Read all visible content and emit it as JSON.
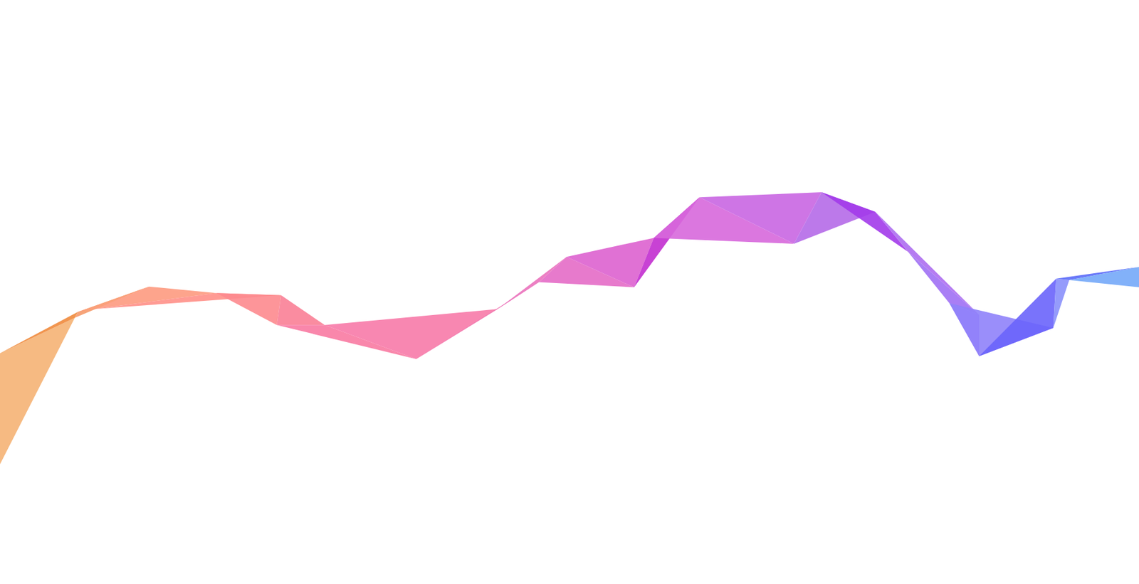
{
  "chart_data": {
    "type": "ribbon",
    "x": [
      0,
      0,
      103,
      107,
      205,
      130,
      298,
      387,
      381,
      447,
      573,
      685,
      742,
      780,
      873,
      900,
      963,
      1093,
      1131,
      1205,
      1250,
      1348,
      1307,
      1348,
      1450,
      1454,
      1472,
      1568,
      1568
    ],
    "values": [
      640,
      487,
      438,
      430,
      395,
      426,
      404,
      407,
      448,
      448,
      495,
      426,
      389,
      354,
      396,
      328,
      272,
      336,
      265,
      292,
      347,
      434,
      418,
      491,
      452,
      384,
      386,
      368,
      396
    ],
    "colors": [
      "#f5b374",
      "#f08a3c",
      "#f59a6a",
      "#fba07a",
      "#fd9a80",
      "#ff9088",
      "#fd8a8e",
      "#fa8096",
      "#f87aa2",
      "#f77aa8",
      "#f079b4",
      "#ea72bc",
      "#e46cc6",
      "#dd62cf",
      "#c22ecf",
      "#d768dc",
      "#c966e2",
      "#b56ae8",
      "#a23aea",
      "#ad6ef0",
      "#a070f4",
      "#a27af8",
      "#8f82fa",
      "#6a64fb",
      "#8a90fb",
      "#5a6af8",
      "#74a8f8"
    ],
    "xlim": [
      0,
      1568
    ],
    "ylim": [
      805,
      0
    ],
    "tick_labels": false
  }
}
